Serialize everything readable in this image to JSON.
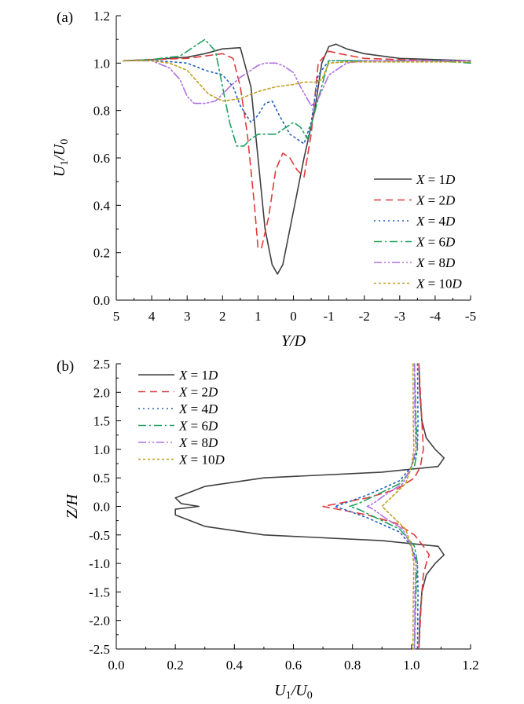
{
  "chart_data": [
    {
      "type": "line",
      "panel_label": "(a)",
      "xlabel": "Y/D",
      "ylabel": "U1/U0",
      "xlim": [
        5,
        -5
      ],
      "ylim": [
        0,
        1.2
      ],
      "x_ticks": [
        5,
        4,
        3,
        2,
        1,
        0,
        -1,
        -2,
        -3,
        -4,
        -5
      ],
      "y_ticks": [
        0.0,
        0.2,
        0.4,
        0.6,
        0.8,
        1.0,
        1.2
      ],
      "x_tick_labels": [
        "5",
        "4",
        "3",
        "2",
        "1",
        "0",
        "-1",
        "-2",
        "-3",
        "-4",
        "-5"
      ],
      "y_tick_labels": [
        "0.0",
        "0.2",
        "0.4",
        "0.6",
        "0.8",
        "1.0",
        "1.2"
      ],
      "legend_position": "lower-right",
      "series": [
        {
          "name": "X = 1D",
          "color": "#404040",
          "dash": "solid",
          "x": [
            4.8,
            4,
            3,
            2.5,
            2,
            1.5,
            1.2,
            1.0,
            0.8,
            0.6,
            0.45,
            0.3,
            0.1,
            -0.1,
            -0.3,
            -0.6,
            -0.8,
            -1.0,
            -1.2,
            -1.5,
            -2,
            -3,
            -4,
            -5
          ],
          "y": [
            1.01,
            1.015,
            1.025,
            1.04,
            1.06,
            1.065,
            0.9,
            0.6,
            0.3,
            0.15,
            0.11,
            0.15,
            0.3,
            0.45,
            0.6,
            0.8,
            1.0,
            1.07,
            1.08,
            1.06,
            1.04,
            1.02,
            1.015,
            1.01
          ]
        },
        {
          "name": "X = 2D",
          "color": "#e03a3a",
          "dash": "9,6",
          "x": [
            4.8,
            4,
            3,
            2.5,
            2,
            1.7,
            1.5,
            1.3,
            1.1,
            1.0,
            0.9,
            0.7,
            0.5,
            0.3,
            0.1,
            -0.1,
            -0.3,
            -0.5,
            -0.7,
            -1.0,
            -1.3,
            -2,
            -3,
            -4,
            -5
          ],
          "y": [
            1.01,
            1.015,
            1.02,
            1.03,
            1.04,
            1.02,
            0.9,
            0.7,
            0.4,
            0.22,
            0.22,
            0.35,
            0.55,
            0.62,
            0.6,
            0.55,
            0.52,
            0.7,
            1.0,
            1.05,
            1.04,
            1.02,
            1.015,
            1.01,
            1.01
          ]
        },
        {
          "name": "X = 4D",
          "color": "#2060c0",
          "dash": "2,4",
          "x": [
            4.8,
            4,
            3,
            2.5,
            2,
            1.7,
            1.5,
            1.2,
            1.0,
            0.8,
            0.6,
            0.4,
            0.1,
            -0.1,
            -0.3,
            -0.5,
            -0.7,
            -1.0,
            -1.5,
            -2,
            -3,
            -4,
            -5
          ],
          "y": [
            1.01,
            1.012,
            1.0,
            0.97,
            0.95,
            0.9,
            0.82,
            0.75,
            0.78,
            0.83,
            0.84,
            0.78,
            0.7,
            0.68,
            0.66,
            0.75,
            0.95,
            1.01,
            1.01,
            1.01,
            1.01,
            1.01,
            1.01
          ]
        },
        {
          "name": "X = 6D",
          "color": "#20a060",
          "dash": "10,4,2,4",
          "x": [
            4.8,
            4,
            3.2,
            2.8,
            2.5,
            2.2,
            2.0,
            1.8,
            1.6,
            1.4,
            1.2,
            1.0,
            0.8,
            0.5,
            0.2,
            0.0,
            -0.2,
            -0.4,
            -0.7,
            -1.0,
            -1.5,
            -2,
            -3,
            -4,
            -5
          ],
          "y": [
            1.01,
            1.015,
            1.03,
            1.07,
            1.1,
            1.05,
            0.9,
            0.75,
            0.65,
            0.65,
            0.68,
            0.7,
            0.7,
            0.7,
            0.73,
            0.75,
            0.73,
            0.68,
            0.85,
            1.01,
            1.01,
            1.01,
            1.01,
            1.01,
            1.0
          ]
        },
        {
          "name": "X = 8D",
          "color": "#b070e0",
          "dash": "10,3,2,3,2,3",
          "x": [
            4.8,
            4,
            3.5,
            3.2,
            3.0,
            2.8,
            2.5,
            2.2,
            2.0,
            1.8,
            1.5,
            1.2,
            1.0,
            0.8,
            0.5,
            0.3,
            0.0,
            -0.2,
            -0.5,
            -0.7,
            -1.0,
            -1.5,
            -2,
            -3,
            -4,
            -5
          ],
          "y": [
            1.01,
            1.01,
            0.98,
            0.93,
            0.86,
            0.83,
            0.83,
            0.84,
            0.87,
            0.9,
            0.94,
            0.97,
            0.99,
            1.0,
            1.0,
            0.99,
            0.96,
            0.9,
            0.82,
            0.85,
            0.95,
            1.0,
            1.01,
            1.01,
            1.01,
            1.01
          ]
        },
        {
          "name": "X = 10D",
          "color": "#c0a020",
          "dash": "3,3",
          "x": [
            4.8,
            4,
            3.5,
            3.0,
            2.7,
            2.4,
            2.0,
            1.5,
            1.0,
            0.5,
            0.0,
            -0.3,
            -0.6,
            -0.8,
            -1.0,
            -1.5,
            -2,
            -3,
            -4,
            -5
          ],
          "y": [
            1.01,
            1.01,
            1.0,
            0.97,
            0.92,
            0.87,
            0.84,
            0.85,
            0.88,
            0.9,
            0.91,
            0.92,
            0.92,
            0.93,
            1.0,
            1.005,
            1.005,
            1.005,
            1.005,
            1.005
          ]
        }
      ]
    },
    {
      "type": "line",
      "panel_label": "(b)",
      "xlabel": "U1/U0",
      "ylabel": "Z/H",
      "xlim": [
        0,
        1.2
      ],
      "ylim": [
        -2.5,
        2.5
      ],
      "x_ticks": [
        0.0,
        0.2,
        0.4,
        0.6,
        0.8,
        1.0,
        1.2
      ],
      "y_ticks": [
        -2.5,
        -2.0,
        -1.5,
        -1.0,
        -0.5,
        0.0,
        0.5,
        1.0,
        1.5,
        2.0,
        2.5
      ],
      "x_tick_labels": [
        "0.0",
        "0.2",
        "0.4",
        "0.6",
        "0.8",
        "1.0",
        "1.2"
      ],
      "y_tick_labels": [
        "-2.5",
        "-2.0",
        "-1.5",
        "-1.0",
        "-0.5",
        "0.0",
        "0.5",
        "1.0",
        "1.5",
        "2.0",
        "2.5"
      ],
      "legend_position": "top-left",
      "series": [
        {
          "name": "X = 1D",
          "color": "#404040",
          "dash": "solid",
          "x": [
            1.025,
            1.028,
            1.035,
            1.05,
            1.08,
            1.11,
            1.09,
            0.9,
            0.5,
            0.3,
            0.2,
            0.22,
            0.28,
            0.2,
            0.2,
            0.3,
            0.5,
            0.9,
            1.09,
            1.11,
            1.08,
            1.05,
            1.035,
            1.028,
            1.025
          ],
          "y": [
            2.5,
            2.0,
            1.5,
            1.2,
            1.0,
            0.85,
            0.7,
            0.6,
            0.5,
            0.35,
            0.15,
            0.05,
            0.0,
            -0.05,
            -0.15,
            -0.35,
            -0.5,
            -0.6,
            -0.7,
            -0.85,
            -1.0,
            -1.2,
            -1.5,
            -2.0,
            -2.5
          ]
        },
        {
          "name": "X = 2D",
          "color": "#e03a3a",
          "dash": "9,6",
          "x": [
            1.025,
            1.03,
            1.035,
            1.04,
            1.03,
            1.01,
            0.95,
            0.85,
            0.75,
            0.7,
            0.75,
            0.85,
            0.95,
            1.01,
            1.04,
            1.06,
            1.05,
            1.04,
            1.035,
            1.03,
            1.025
          ],
          "y": [
            2.5,
            2.0,
            1.5,
            1.0,
            0.7,
            0.5,
            0.3,
            0.15,
            0.05,
            0.0,
            -0.05,
            -0.15,
            -0.3,
            -0.5,
            -0.7,
            -0.85,
            -1.0,
            -1.2,
            -1.5,
            -2.0,
            -2.5
          ]
        },
        {
          "name": "X = 4D",
          "color": "#2060c0",
          "dash": "2,4",
          "x": [
            1.02,
            1.022,
            1.02,
            1.0,
            0.96,
            0.85,
            0.77,
            0.74,
            0.77,
            0.85,
            0.96,
            1.0,
            1.02,
            1.022,
            1.02
          ],
          "y": [
            2.5,
            1.5,
            1.0,
            0.7,
            0.45,
            0.2,
            0.05,
            0.0,
            -0.05,
            -0.2,
            -0.45,
            -0.7,
            -1.0,
            -1.5,
            -2.5
          ]
        },
        {
          "name": "X = 6D",
          "color": "#20a060",
          "dash": "10,4,2,4",
          "x": [
            1.01,
            1.015,
            1.02,
            1.01,
            0.96,
            0.88,
            0.82,
            0.79,
            0.82,
            0.88,
            0.96,
            1.01,
            1.02,
            1.015,
            1.01
          ],
          "y": [
            2.5,
            1.5,
            1.0,
            0.7,
            0.4,
            0.2,
            0.05,
            0.0,
            -0.05,
            -0.2,
            -0.4,
            -0.7,
            -1.0,
            -1.5,
            -2.5
          ]
        },
        {
          "name": "X = 8D",
          "color": "#b070e0",
          "dash": "10,3,2,3,2,3",
          "x": [
            1.01,
            1.012,
            1.015,
            1.0,
            0.97,
            0.91,
            0.87,
            0.85,
            0.87,
            0.91,
            0.97,
            1.0,
            1.015,
            1.012,
            1.01
          ],
          "y": [
            2.5,
            1.5,
            1.0,
            0.7,
            0.4,
            0.2,
            0.05,
            0.0,
            -0.05,
            -0.2,
            -0.4,
            -0.7,
            -1.0,
            -1.5,
            -2.5
          ]
        },
        {
          "name": "X = 10D",
          "color": "#c0a020",
          "dash": "3,3",
          "x": [
            1.005,
            1.006,
            1.008,
            1.0,
            0.98,
            0.94,
            0.91,
            0.9,
            0.91,
            0.94,
            0.98,
            1.0,
            1.008,
            1.006,
            1.005
          ],
          "y": [
            2.5,
            1.5,
            1.0,
            0.7,
            0.4,
            0.2,
            0.05,
            0.0,
            -0.05,
            -0.2,
            -0.4,
            -0.7,
            -1.0,
            -1.5,
            -2.5
          ]
        }
      ]
    }
  ]
}
